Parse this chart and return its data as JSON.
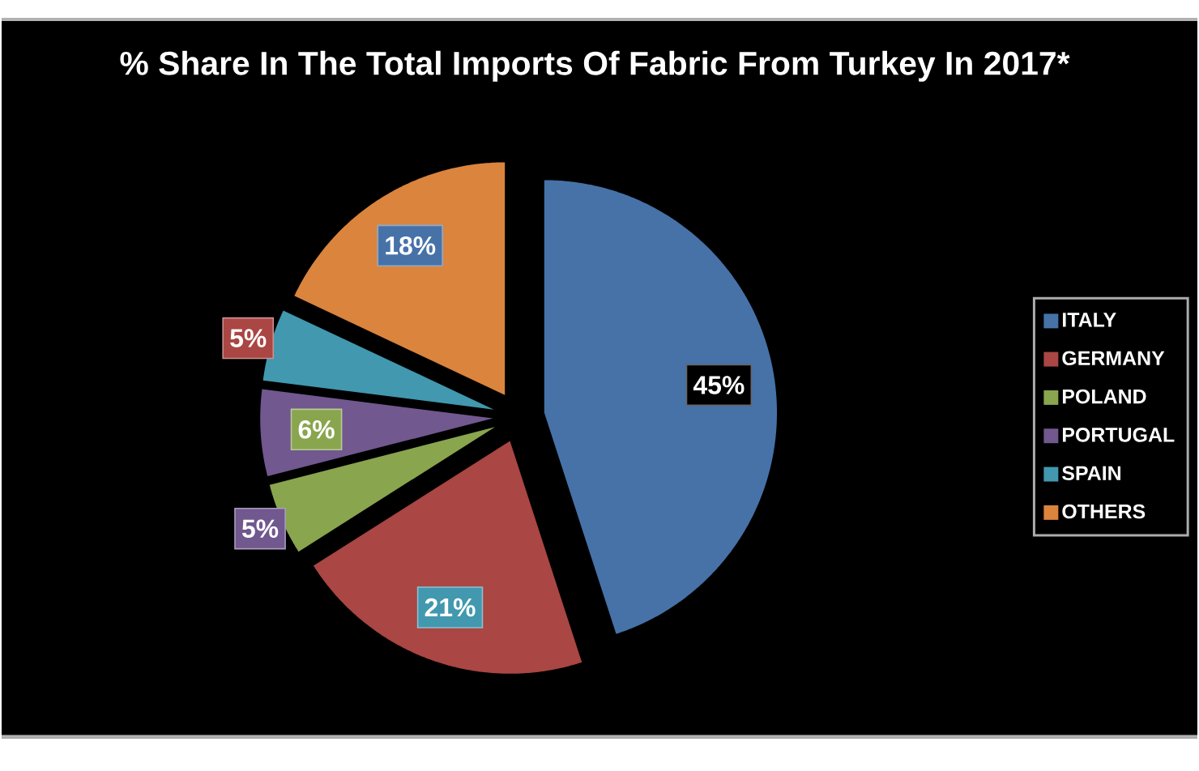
{
  "chart_data": {
    "type": "pie",
    "title": "% Share In The Total Imports Of Fabric From Turkey In 2017*",
    "categories": [
      "ITALY",
      "GERMANY",
      "POLAND",
      "PORTUGAL",
      "SPAIN",
      "OTHERS"
    ],
    "values": [
      45,
      21,
      5,
      6,
      5,
      18
    ],
    "colors": [
      "#4672a8",
      "#aa4643",
      "#89a54e",
      "#71588f",
      "#4198af",
      "#db843d"
    ],
    "value_labels": [
      "45%",
      "21%",
      "5%",
      "6%",
      "5%",
      "18%"
    ],
    "legend": "right"
  }
}
